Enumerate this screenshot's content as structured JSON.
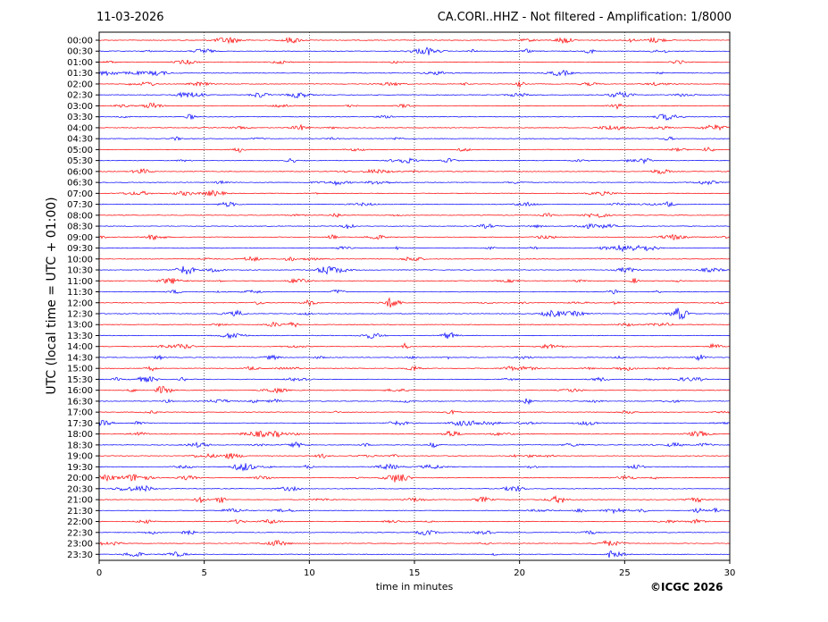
{
  "header": {
    "date": "11-03-2026",
    "title": "CA.CORI..HHZ - Not filtered - Amplification: 1/8000"
  },
  "footer": {
    "copyright": "©ICGC 2026"
  },
  "chart_data": {
    "type": "line",
    "title": "CA.CORI..HHZ - Not filtered - Amplification: 1/8000",
    "xlabel": "time in minutes",
    "ylabel": "UTC (local time = UTC + 01:00)",
    "xlim": [
      0,
      30
    ],
    "x_ticks": [
      "0",
      "5",
      "10",
      "15",
      "20",
      "25",
      "30"
    ],
    "y_tick_labels": [
      "00:00",
      "00:30",
      "01:00",
      "01:30",
      "02:00",
      "02:30",
      "03:00",
      "03:30",
      "04:00",
      "04:30",
      "05:00",
      "05:30",
      "06:00",
      "06:30",
      "07:00",
      "07:30",
      "08:00",
      "08:30",
      "09:00",
      "09:30",
      "10:00",
      "10:30",
      "11:00",
      "11:30",
      "12:00",
      "12:30",
      "13:00",
      "13:30",
      "14:00",
      "14:30",
      "15:00",
      "15:30",
      "16:00",
      "16:30",
      "17:00",
      "17:30",
      "18:00",
      "18:30",
      "19:00",
      "19:30",
      "20:00",
      "20:30",
      "21:00",
      "21:30",
      "22:00",
      "22:30",
      "23:00",
      "23:30"
    ],
    "trace_colors": [
      "#ff0000",
      "#0000ff"
    ],
    "grid": "vertical dotted lines at 5-minute intervals"
  }
}
